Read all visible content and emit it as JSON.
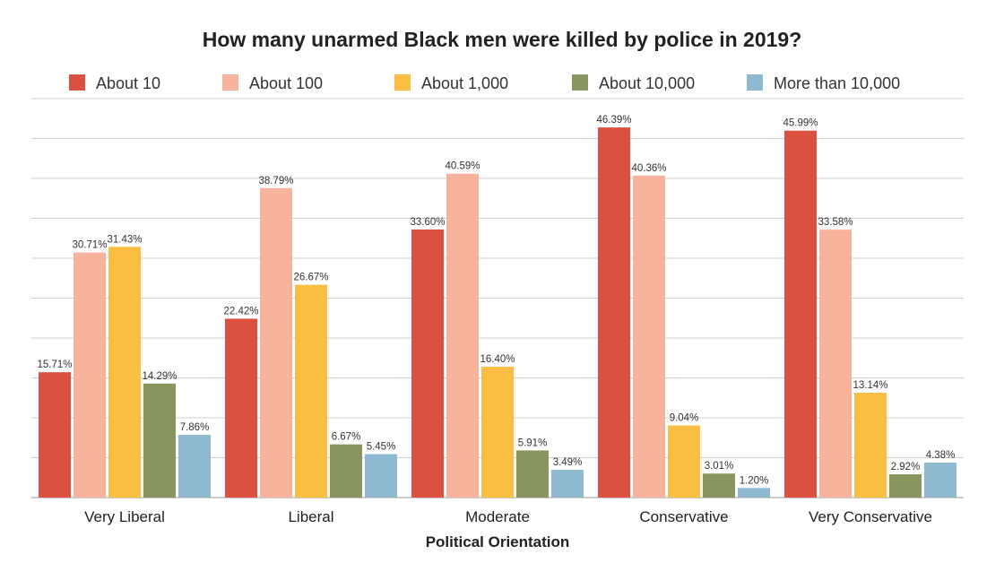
{
  "chart_data": {
    "type": "bar",
    "title": "How many unarmed Black men were killed by police in 2019?",
    "xlabel": "Political Orientation",
    "ylabel": "",
    "ylim": [
      0,
      50
    ],
    "grid": true,
    "grid_step": 5,
    "legend_position": "top",
    "categories": [
      "Very Liberal",
      "Liberal",
      "Moderate",
      "Conservative",
      "Very Conservative"
    ],
    "series": [
      {
        "name": "About 10",
        "color": "#DB5140",
        "values": [
          15.71,
          22.42,
          33.6,
          46.39,
          45.99
        ],
        "labels": [
          "15.71%",
          "22.42%",
          "33.60%",
          "46.39%",
          "45.99%"
        ]
      },
      {
        "name": "About 100",
        "color": "#F7B39D",
        "values": [
          30.71,
          38.79,
          40.59,
          40.36,
          33.58
        ],
        "labels": [
          "30.71%",
          "38.79%",
          "40.59%",
          "40.36%",
          "33.58%"
        ]
      },
      {
        "name": "About 1,000",
        "color": "#FBBE45",
        "values": [
          31.43,
          26.67,
          16.4,
          9.04,
          13.14
        ],
        "labels": [
          "31.43%",
          "26.67%",
          "16.40%",
          "9.04%",
          "13.14%"
        ]
      },
      {
        "name": "About 10,000",
        "color": "#88955E",
        "values": [
          14.29,
          6.67,
          5.91,
          3.01,
          2.92
        ],
        "labels": [
          "14.29%",
          "6.67%",
          "5.91%",
          "3.01%",
          "2.92%"
        ]
      },
      {
        "name": "More than 10,000",
        "color": "#8DBAD1",
        "values": [
          7.86,
          5.45,
          3.49,
          1.2,
          4.38
        ],
        "labels": [
          "7.86%",
          "5.45%",
          "3.49%",
          "1.20%",
          "4.38%"
        ]
      }
    ]
  }
}
